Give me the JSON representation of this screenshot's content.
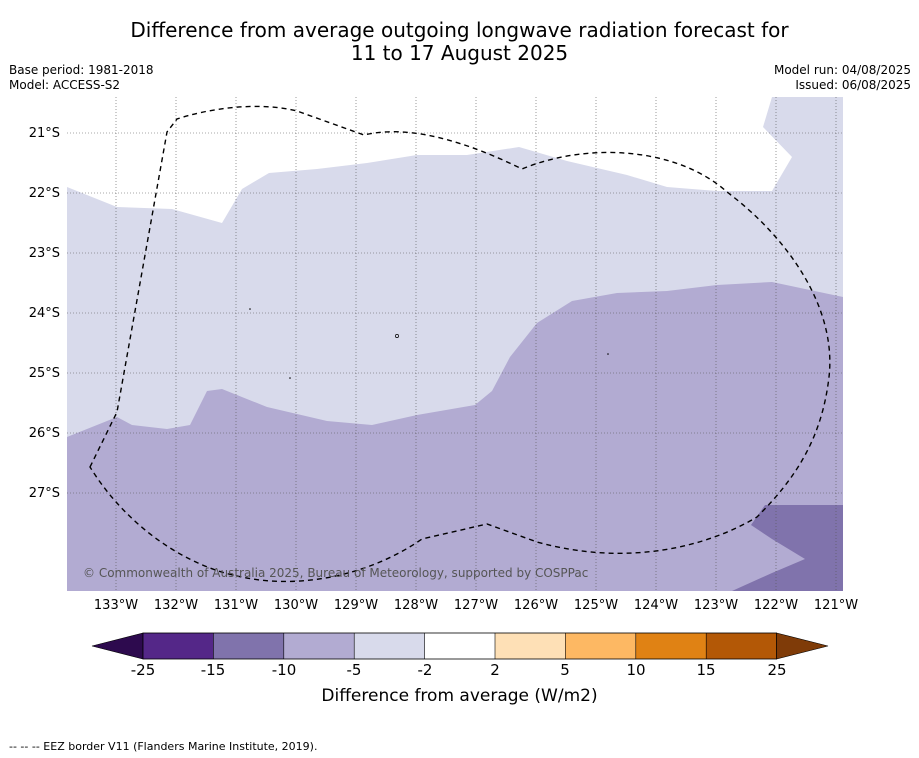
{
  "title_line1": "Difference from average outgoing longwave radiation forecast for",
  "title_line2": "11 to 17 August 2025",
  "base_period": "Base period: 1981-2018",
  "model": "Model: ACCESS-S2",
  "model_run": "Model run: 04/08/2025",
  "issued": "Issued: 06/08/2025",
  "latitude_labels": [
    "21°S",
    "22°S",
    "23°S",
    "24°S",
    "25°S",
    "26°S",
    "27°S"
  ],
  "longitude_labels": [
    "133°W",
    "132°W",
    "131°W",
    "130°W",
    "129°W",
    "128°W",
    "127°W",
    "126°W",
    "125°W",
    "124°W",
    "123°W",
    "122°W",
    "121°W"
  ],
  "copyright": "© Commonwealth of Australia 2025, Bureau of Meteorology, supported by COSPPac",
  "colorbar": {
    "title": "Difference from average (W/m2)",
    "ticks": [
      "-25",
      "-15",
      "-10",
      "-5",
      "-2",
      "2",
      "5",
      "10",
      "15",
      "25"
    ],
    "under_color": "#2d0a4e",
    "over_color": "#7f3b08",
    "colors": [
      "#542788",
      "#8073ac",
      "#b2abd2",
      "#d8daeb",
      "#ffffff",
      "#fee0b6",
      "#fdb863",
      "#e08214",
      "#b35806"
    ]
  },
  "footnote": "--  --  -- EEZ border V11 (Flanders Marine Institute, 2019)."
}
